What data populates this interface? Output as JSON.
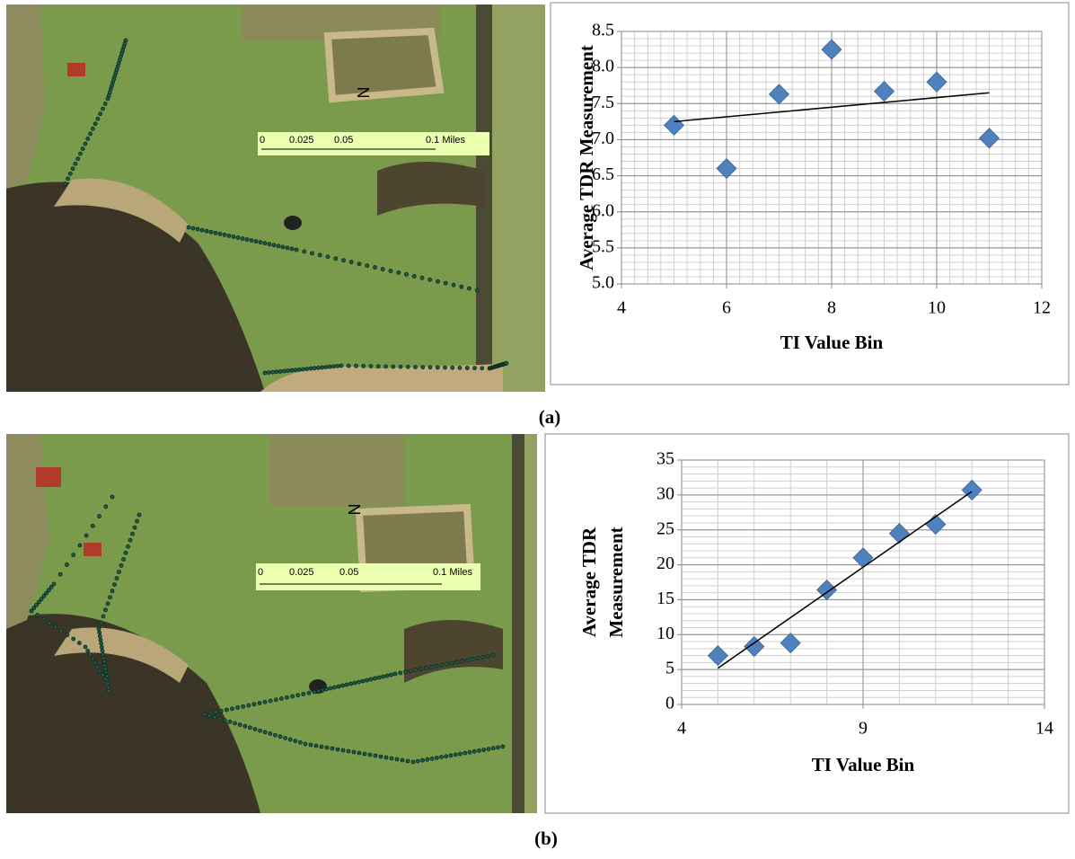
{
  "panels": [
    {
      "label": "(a)",
      "map": {
        "scale_labels": [
          "0",
          "0.025",
          "0.05",
          "0.1 Miles"
        ],
        "north_label": "N"
      }
    },
    {
      "label": "(b)",
      "map": {
        "scale_labels": [
          "0",
          "0.025",
          "0.05",
          "0.1 Miles"
        ],
        "north_label": "N"
      }
    }
  ],
  "chart_data": [
    {
      "type": "scatter",
      "xlabel": "TI Value Bin",
      "ylabel": [
        "Average TDR Measurement"
      ],
      "x": [
        5,
        6,
        7,
        8,
        9,
        10,
        11
      ],
      "values": [
        7.2,
        6.6,
        7.63,
        8.25,
        7.67,
        7.8,
        7.02
      ],
      "color": "#4f81bd",
      "trendline": {
        "x": [
          5,
          11
        ],
        "values": [
          7.25,
          7.65
        ],
        "color": "#000000"
      },
      "xlim": [
        4,
        12
      ],
      "xticks": [
        4,
        6,
        8,
        10,
        12
      ],
      "ylim": [
        5,
        8.5
      ],
      "yticks": [
        {
          "value": 5,
          "label": "5.0"
        },
        5.5,
        {
          "value": 6,
          "label": "6.0"
        },
        6.5,
        {
          "value": 7,
          "label": "7.0"
        },
        7.5,
        {
          "value": 8,
          "label": "8.0"
        },
        8.5
      ],
      "grid": true,
      "minor_xstep": 0.25,
      "minor_ystep": 0.1
    },
    {
      "type": "scatter",
      "xlabel": "TI Value Bin",
      "ylabel": [
        "Average TDR",
        "Measurement"
      ],
      "x": [
        5,
        6,
        7,
        8,
        9,
        10,
        11,
        12
      ],
      "values": [
        7,
        8.3,
        8.8,
        16.4,
        21,
        24.5,
        25.8,
        30.7
      ],
      "color": "#4f81bd",
      "trendline": {
        "x": [
          5,
          12
        ],
        "values": [
          5.2,
          30.5
        ],
        "color": "#000000"
      },
      "xlim": [
        4,
        14
      ],
      "xticks": [
        4,
        9,
        14
      ],
      "ylim": [
        0,
        35
      ],
      "yticks": [
        0,
        5,
        10,
        15,
        20,
        25,
        30,
        35
      ],
      "grid": true,
      "minor_xstep": 1,
      "minor_ystep": 1
    }
  ]
}
